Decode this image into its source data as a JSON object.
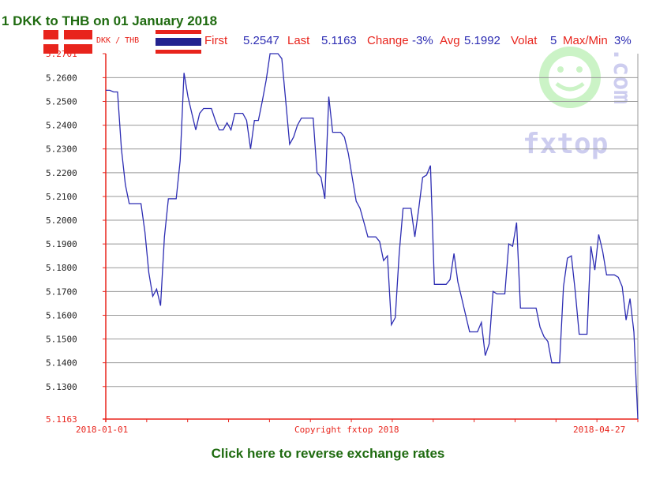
{
  "title": "1 DKK to THB on 01 January 2018",
  "pair_label": "DKK / THB",
  "stats": {
    "first_label": "First",
    "first_value": "5.2547",
    "last_label": "Last",
    "last_value": "5.1163",
    "change_label": "Change",
    "change_value": "-3%",
    "avg_label": "Avg",
    "avg_value": "5.1992",
    "volat_label": "Volat",
    "volat_value": "5",
    "maxmin_label": "Max/Min",
    "maxmin_value": "3%"
  },
  "footer_link": "Click here to reverse exchange rates",
  "watermark": {
    "text_top": ".com",
    "text_bottom": "fxtop"
  },
  "colors": {
    "line": "#2d2db3",
    "axis": "#e8241c",
    "grid": "#999999",
    "title": "#1f6b10",
    "watermark_green": "#c6f2c0",
    "watermark_blue": "#c8c8ee"
  },
  "icons": {
    "left_flag": "denmark-flag-icon",
    "right_flag": "thailand-flag-icon"
  },
  "chart_data": {
    "type": "line",
    "title": "1 DKK to THB on 01 January 2018",
    "ylim": [
      5.1163,
      5.2701
    ],
    "y_ticks": [
      "5.2701",
      "5.2600",
      "5.2500",
      "5.2400",
      "5.2300",
      "5.2200",
      "5.2100",
      "5.2000",
      "5.1900",
      "5.1800",
      "5.1700",
      "5.1600",
      "5.1500",
      "5.1400",
      "5.1300",
      "5.1163"
    ],
    "y_tick_values": [
      5.2701,
      5.26,
      5.25,
      5.24,
      5.23,
      5.22,
      5.21,
      5.2,
      5.19,
      5.18,
      5.17,
      5.16,
      5.15,
      5.14,
      5.13,
      5.1163
    ],
    "x_labels": [
      "2018-01-01",
      "Copyright fxtop 2018",
      "2018-04-27"
    ],
    "xlim": [
      0,
      116
    ],
    "grid": true,
    "series": [
      {
        "values": [
          5.2547,
          5.2547,
          5.254,
          5.254,
          5.23,
          5.215,
          5.207,
          5.207,
          5.207,
          5.207,
          5.195,
          5.178,
          5.168,
          5.171,
          5.164,
          5.193,
          5.209,
          5.209,
          5.209,
          5.225,
          5.262,
          5.252,
          5.245,
          5.238,
          5.245,
          5.247,
          5.247,
          5.247,
          5.242,
          5.238,
          5.238,
          5.241,
          5.238,
          5.245,
          5.245,
          5.245,
          5.242,
          5.23,
          5.242,
          5.242,
          5.25,
          5.259,
          5.2701,
          5.2701,
          5.2701,
          5.268,
          5.25,
          5.232,
          5.235,
          5.24,
          5.243,
          5.243,
          5.243,
          5.243,
          5.22,
          5.218,
          5.209,
          5.252,
          5.237,
          5.237,
          5.237,
          5.235,
          5.228,
          5.218,
          5.208,
          5.205,
          5.199,
          5.193,
          5.193,
          5.193,
          5.191,
          5.183,
          5.185,
          5.156,
          5.159,
          5.186,
          5.205,
          5.205,
          5.205,
          5.193,
          5.205,
          5.218,
          5.219,
          5.223,
          5.173,
          5.173,
          5.173,
          5.173,
          5.175,
          5.186,
          5.174,
          5.167,
          5.16,
          5.153,
          5.153,
          5.153,
          5.157,
          5.143,
          5.148,
          5.17,
          5.169,
          5.169,
          5.169,
          5.19,
          5.189,
          5.199,
          5.163,
          5.163,
          5.163,
          5.163,
          5.163,
          5.155,
          5.151,
          5.149,
          5.14,
          5.14,
          5.14,
          5.172,
          5.184,
          5.185,
          5.17,
          5.152,
          5.152,
          5.152,
          5.189,
          5.179,
          5.194,
          5.187,
          5.177,
          5.177,
          5.177,
          5.176,
          5.172,
          5.158,
          5.167,
          5.153,
          5.1163
        ]
      }
    ]
  }
}
